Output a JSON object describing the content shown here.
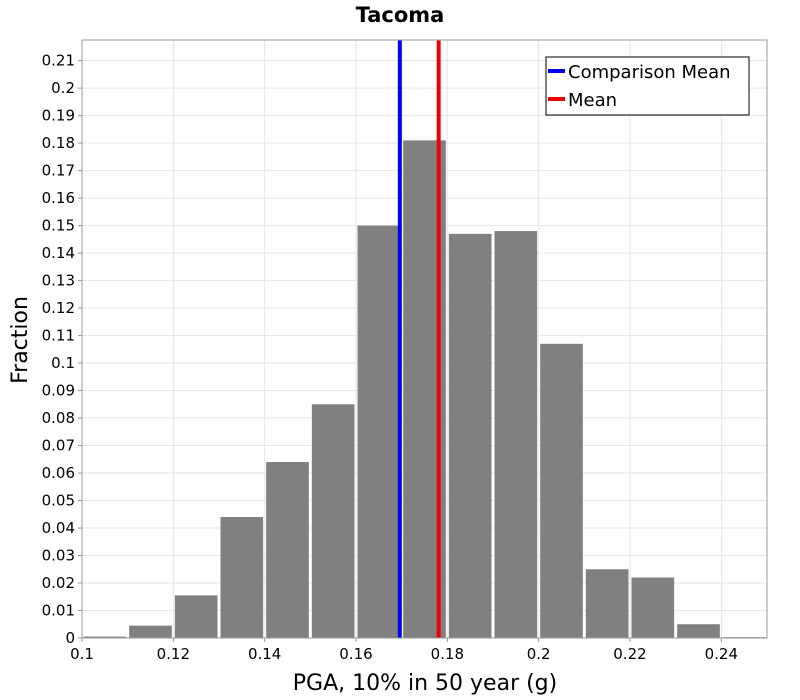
{
  "chart_data": {
    "type": "bar",
    "title": "Tacoma",
    "xlabel": "PGA, 10% in 50 year (g)",
    "ylabel": "Fraction",
    "xlim": [
      0.1,
      0.25
    ],
    "ylim": [
      0,
      0.2175
    ],
    "xticks": [
      "0.1",
      "0.12",
      "0.14",
      "0.16",
      "0.18",
      "0.2",
      "0.22",
      "0.24"
    ],
    "xtick_values": [
      0.1,
      0.12,
      0.14,
      0.16,
      0.18,
      0.2,
      0.22,
      0.24
    ],
    "yticks": [
      "0",
      "0.01",
      "0.02",
      "0.03",
      "0.04",
      "0.05",
      "0.06",
      "0.07",
      "0.08",
      "0.09",
      "0.1",
      "0.11",
      "0.12",
      "0.13",
      "0.14",
      "0.15",
      "0.16",
      "0.17",
      "0.18",
      "0.19",
      "0.2",
      "0.21"
    ],
    "ytick_values": [
      0,
      0.01,
      0.02,
      0.03,
      0.04,
      0.05,
      0.06,
      0.07,
      0.08,
      0.09,
      0.1,
      0.11,
      0.12,
      0.13,
      0.14,
      0.15,
      0.16,
      0.17,
      0.18,
      0.19,
      0.2,
      0.21
    ],
    "bin_width": 0.01,
    "bin_centers": [
      0.105,
      0.115,
      0.125,
      0.135,
      0.145,
      0.155,
      0.165,
      0.175,
      0.185,
      0.195,
      0.205,
      0.215,
      0.225,
      0.235,
      0.245
    ],
    "values": [
      0.0005,
      0.0045,
      0.0155,
      0.044,
      0.064,
      0.085,
      0.15,
      0.181,
      0.147,
      0.148,
      0.107,
      0.025,
      0.022,
      0.005,
      0.0003
    ],
    "bar_color": "#808080",
    "grid": true,
    "vlines": [
      {
        "name": "Comparison Mean",
        "x": 0.1696,
        "color": "#0000ee"
      },
      {
        "name": "Mean",
        "x": 0.1781,
        "color": "#ee0000"
      }
    ],
    "legend": {
      "position": "top-right",
      "entries": [
        {
          "label": "Comparison Mean",
          "color": "#0000ee"
        },
        {
          "label": "Mean",
          "color": "#ee0000"
        }
      ]
    }
  }
}
